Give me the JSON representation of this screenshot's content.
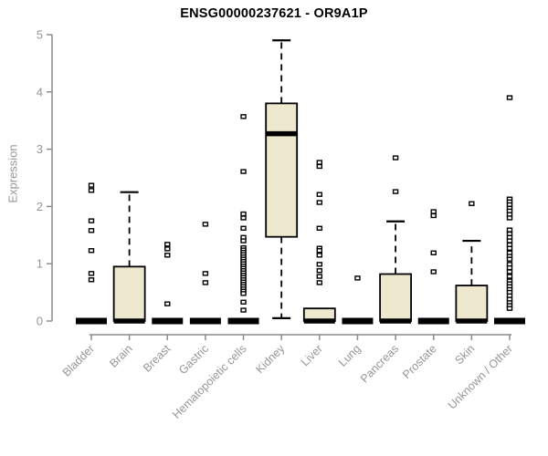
{
  "title": "ENSG00000237621 - OR9A1P",
  "colors": {
    "box_fill": "#EDE8CE",
    "box_stroke": "#000000",
    "median": "#000000",
    "whisker": "#000000",
    "outlier_stroke": "#000000",
    "outlier_fill": "#ffffff",
    "axis_line": "#8c8c8c",
    "axis_text": "#969696",
    "title_text": "#000000",
    "background": "#ffffff"
  },
  "chart_data": {
    "type": "boxplot",
    "title": "ENSG00000237621 - OR9A1P",
    "xlabel": "",
    "ylabel": "Expression",
    "ylim": [
      0,
      5
    ],
    "yticks": [
      0,
      1,
      2,
      3,
      4,
      5
    ],
    "grid": false,
    "legend": false,
    "categories": [
      "Bladder",
      "Brain",
      "Breast",
      "Gastric",
      "Hematopoietic cells",
      "Kidney",
      "Liver",
      "Lung",
      "Pancreas",
      "Prostate",
      "Skin",
      "Unknown / Other"
    ],
    "series": [
      {
        "name": "Bladder",
        "q1": 0,
        "median": 0,
        "q3": 0,
        "whisker_low": 0,
        "whisker_high": 0,
        "outliers": [
          2.37,
          2.28,
          1.75,
          1.58,
          1.23,
          0.83,
          0.72
        ]
      },
      {
        "name": "Brain",
        "q1": 0,
        "median": 0,
        "q3": 0.95,
        "whisker_low": 0,
        "whisker_high": 2.25,
        "outliers": []
      },
      {
        "name": "Breast",
        "q1": 0,
        "median": 0,
        "q3": 0,
        "whisker_low": 0,
        "whisker_high": 0,
        "outliers": [
          1.34,
          1.26,
          1.15,
          0.3
        ]
      },
      {
        "name": "Gastric",
        "q1": 0,
        "median": 0,
        "q3": 0,
        "whisker_low": 0,
        "whisker_high": 0,
        "outliers": [
          1.69,
          0.83,
          0.67
        ]
      },
      {
        "name": "Hematopoietic cells",
        "q1": 0,
        "median": 0,
        "q3": 0,
        "whisker_low": 0,
        "whisker_high": 0,
        "outliers": [
          3.57,
          2.61,
          1.87,
          1.8,
          1.62,
          1.46,
          1.4,
          1.28,
          1.24,
          1.2,
          1.16,
          1.12,
          1.08,
          1.04,
          1.0,
          0.96,
          0.92,
          0.88,
          0.84,
          0.8,
          0.76,
          0.72,
          0.68,
          0.64,
          0.6,
          0.56,
          0.52,
          0.48,
          0.33,
          0.19
        ]
      },
      {
        "name": "Kidney",
        "q1": 1.47,
        "median": 3.27,
        "q3": 3.8,
        "whisker_low": 0.05,
        "whisker_high": 4.9,
        "outliers": []
      },
      {
        "name": "Liver",
        "q1": 0,
        "median": 0,
        "q3": 0.22,
        "whisker_low": 0,
        "whisker_high": 0.22,
        "outliers": [
          2.77,
          2.7,
          2.21,
          2.07,
          1.62,
          1.27,
          1.23,
          1.15,
          0.99,
          0.88,
          0.78,
          0.67
        ]
      },
      {
        "name": "Lung",
        "q1": 0,
        "median": 0,
        "q3": 0,
        "whisker_low": 0,
        "whisker_high": 0,
        "outliers": [
          0.75
        ]
      },
      {
        "name": "Pancreas",
        "q1": 0,
        "median": 0,
        "q3": 0.82,
        "whisker_low": 0,
        "whisker_high": 1.74,
        "outliers": [
          2.85,
          2.26
        ]
      },
      {
        "name": "Prostate",
        "q1": 0,
        "median": 0,
        "q3": 0,
        "whisker_low": 0,
        "whisker_high": 0,
        "outliers": [
          1.91,
          1.84,
          1.19,
          0.86
        ]
      },
      {
        "name": "Skin",
        "q1": 0,
        "median": 0,
        "q3": 0.62,
        "whisker_low": 0,
        "whisker_high": 1.4,
        "outliers": [
          2.05
        ]
      },
      {
        "name": "Unknown / Other",
        "q1": 0,
        "median": 0,
        "q3": 0,
        "whisker_low": 0,
        "whisker_high": 0,
        "outliers": [
          3.9,
          2.13,
          2.08,
          2.03,
          1.97,
          1.92,
          1.86,
          1.8,
          1.59,
          1.52,
          1.46,
          1.4,
          1.33,
          1.27,
          1.19,
          1.13,
          1.08,
          0.99,
          0.93,
          0.86,
          0.78,
          0.7,
          0.65,
          0.6,
          0.55,
          0.5,
          0.44,
          0.38,
          0.32,
          0.27,
          0.22
        ]
      }
    ]
  }
}
